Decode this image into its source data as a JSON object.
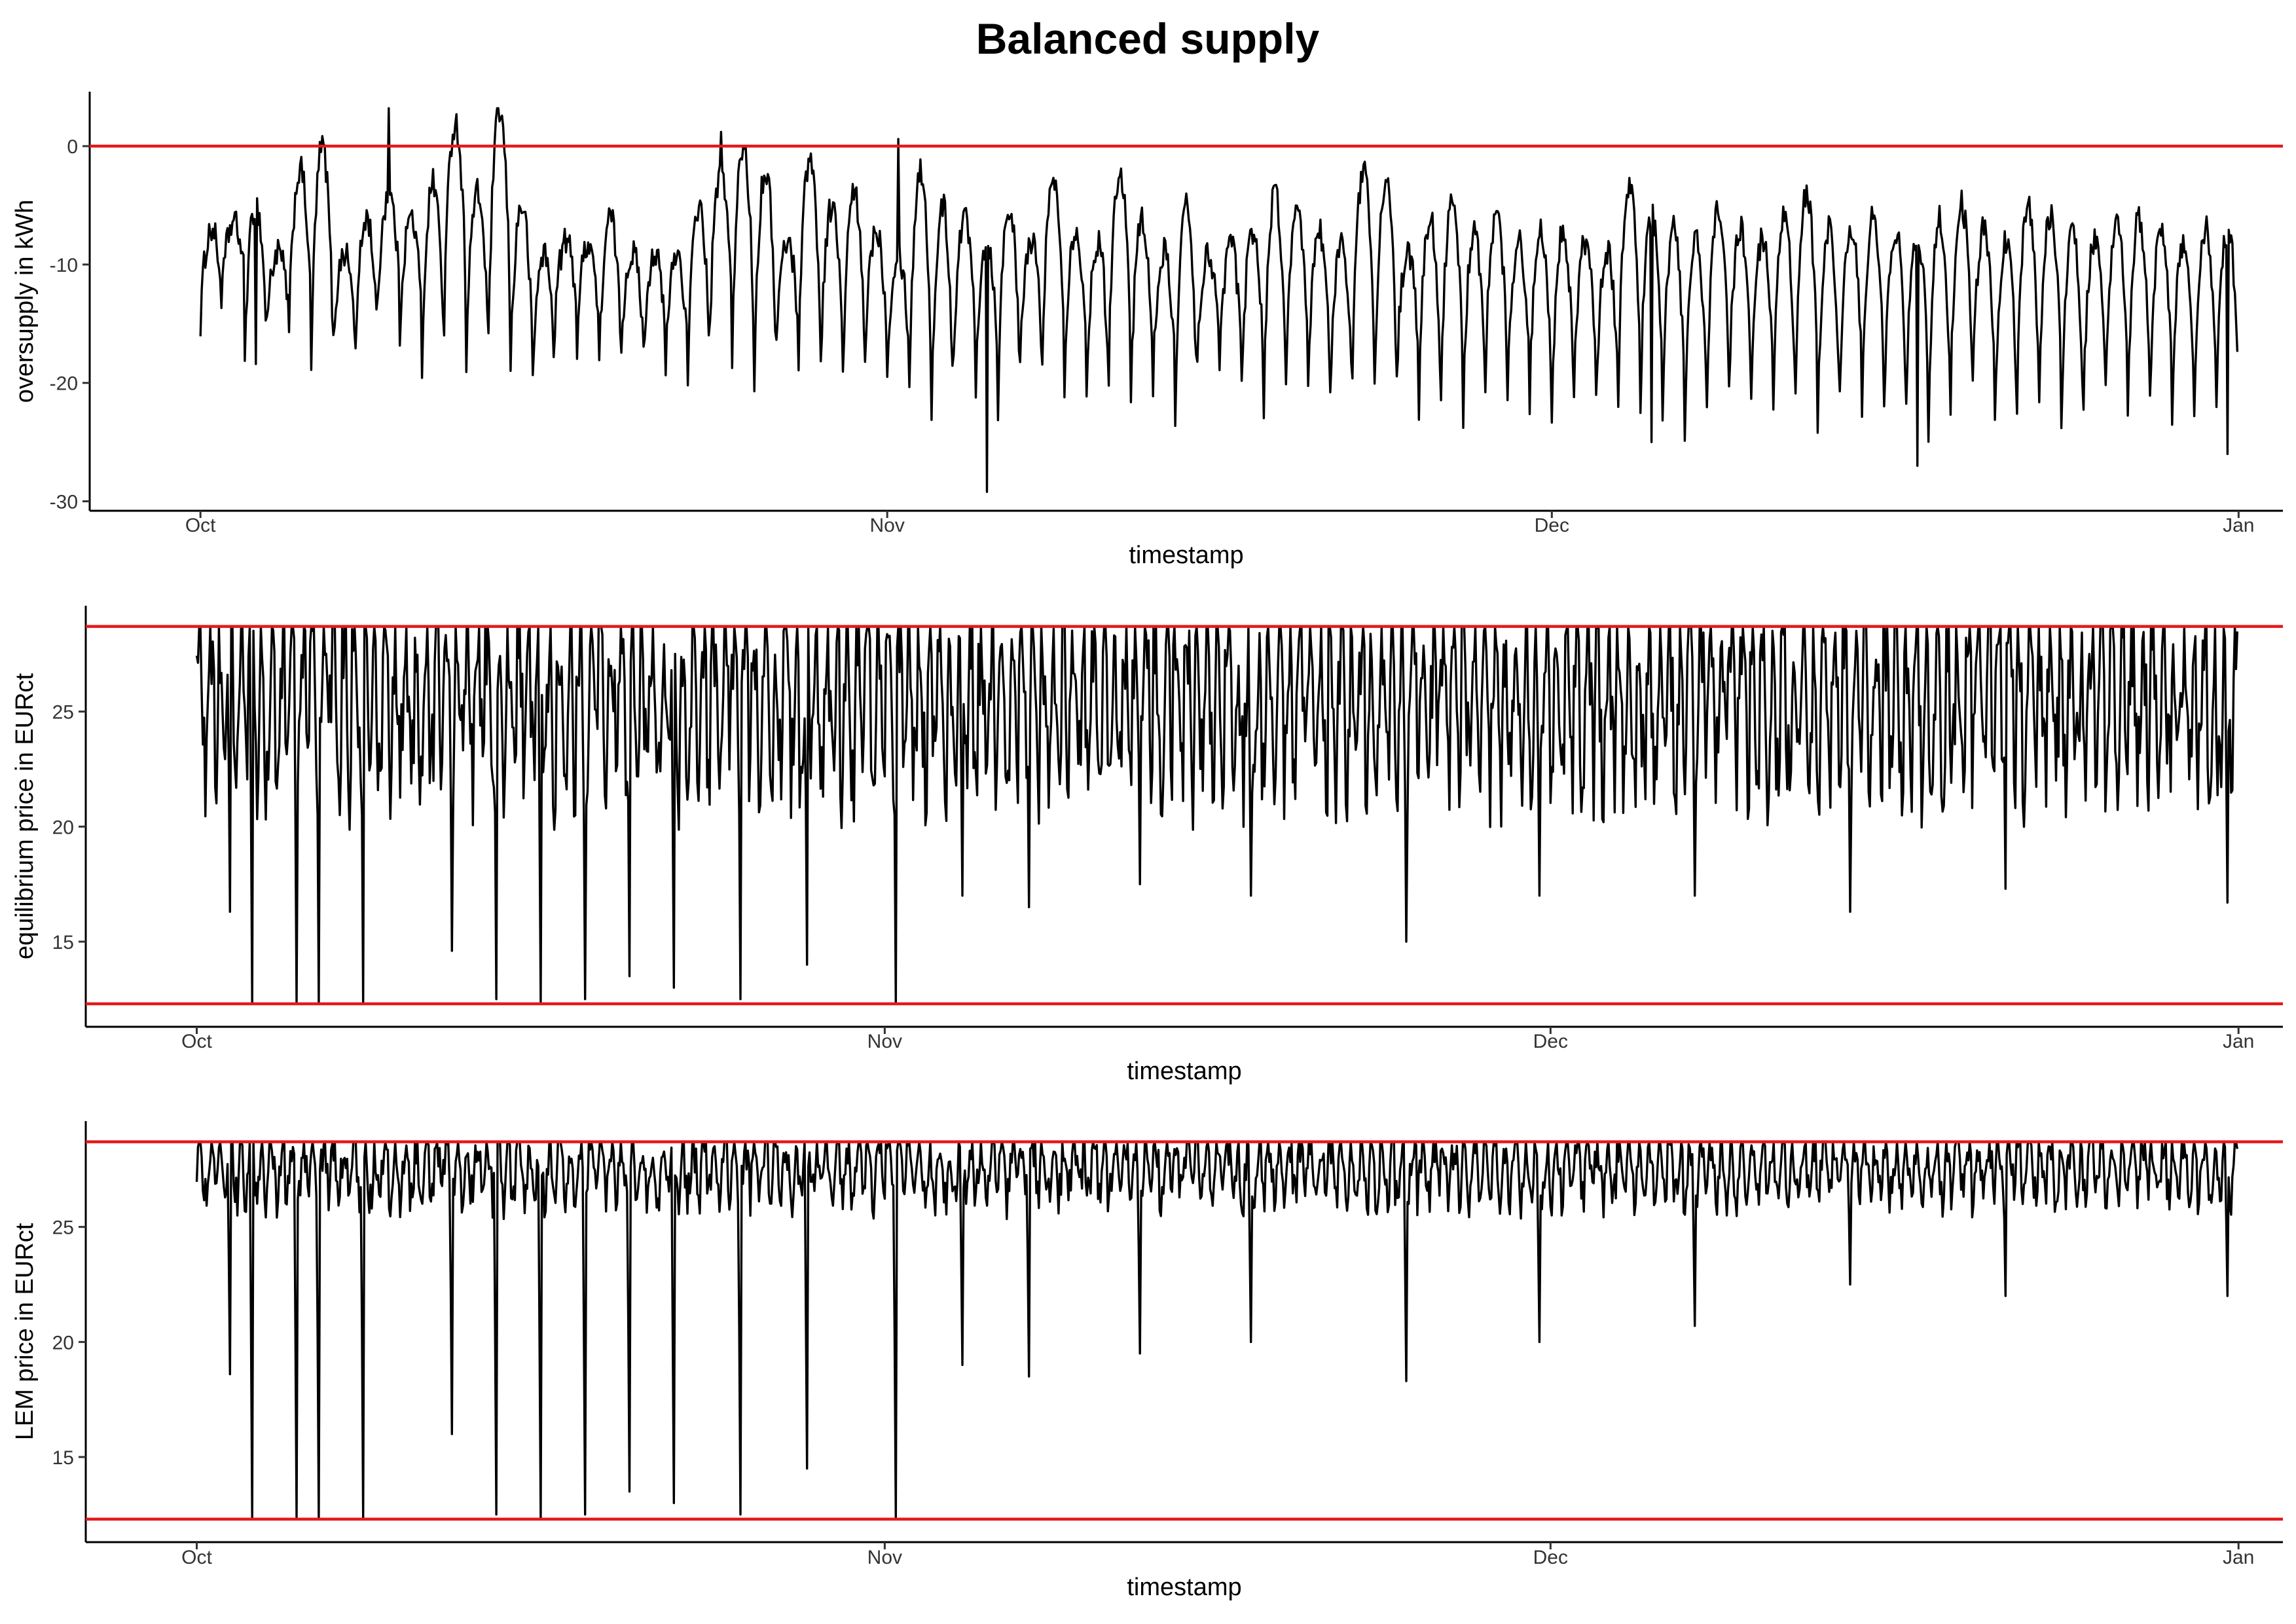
{
  "title": "Balanced supply",
  "colors": {
    "series": "#000000",
    "reference": "#e41a1c"
  },
  "chart_data": [
    {
      "type": "line",
      "xlabel": "timestamp",
      "ylabel": "oversupply in kWh",
      "x_tick_labels": [
        "Oct",
        "Nov",
        "Dec",
        "Jan"
      ],
      "y_tick_labels": [
        "0",
        "-10",
        "-20",
        "-30"
      ],
      "y_ticks": [
        0,
        -10,
        -20,
        -30
      ],
      "ylim": [
        -30.8,
        4.6
      ],
      "xlim": [
        "2023-09-26",
        "2024-01-03"
      ],
      "reference_lines": [
        0
      ],
      "grid": false,
      "series": [
        {
          "x_range": [
            "2023-10-01",
            "2023-12-31"
          ],
          "y_range": [
            -29.2,
            3.2
          ],
          "daily_peak": [
            -7,
            -6.5,
            -5,
            -9,
            -2,
            0,
            -9,
            -6,
            -4,
            -6,
            -3,
            2,
            -4,
            3,
            -5,
            -9,
            -8,
            -8,
            -6,
            -9,
            -9,
            -9,
            -5,
            -2,
            0,
            -2,
            -8,
            -1,
            -5,
            -4,
            -7,
            -9,
            -2,
            -5,
            -6,
            -8,
            -5,
            -8,
            -3,
            -7,
            -8,
            -2,
            -6,
            -9,
            -5,
            -9,
            -8,
            -7,
            -4,
            -6,
            -7,
            -8,
            -2,
            -3,
            -9,
            -6,
            -5,
            -7,
            -6,
            -8,
            -7,
            -7,
            -8,
            -9,
            -3,
            -6,
            -7,
            -8,
            -5,
            -7,
            -8,
            -6,
            -4,
            -7,
            -7,
            -6,
            -7,
            -8,
            -6,
            -5,
            -7,
            -8,
            -5,
            -6,
            -7,
            -8,
            -7,
            -6,
            -7,
            -8,
            -7,
            -7,
            -6,
            -8,
            -7,
            -7,
            -7,
            -6,
            -7,
            -8,
            -7,
            -7,
            -6,
            -7,
            -7,
            -7,
            -8,
            -7
          ],
          "daily_trough": [
            -15,
            -12,
            -18,
            -15,
            -16,
            -19,
            -17,
            -18,
            -14,
            -16,
            -19,
            -15,
            -18,
            -17,
            -19,
            -20,
            -15,
            -17,
            -19,
            -17,
            -18,
            -19,
            -20,
            -16,
            -19,
            -20,
            -17,
            -18,
            -19,
            -20,
            -18,
            -19,
            -21,
            -24,
            -18,
            -20,
            -22,
            -19,
            -18,
            -20,
            -21,
            -19,
            -22,
            -20,
            -24,
            -19,
            -20,
            -21,
            -22,
            -19,
            -21,
            -22,
            -20,
            -21,
            -20,
            -22,
            -21,
            -23,
            -20,
            -21,
            -22,
            -23,
            -21,
            -22,
            -21,
            -22,
            -23,
            -24,
            -22,
            -21,
            -22,
            -23,
            -22,
            -24,
            -21,
            -22,
            -23,
            -21,
            -24,
            -22,
            -21,
            -23,
            -22,
            -21,
            -24,
            -22,
            -21,
            -23,
            -22,
            -24,
            -22,
            -21,
            -23,
            -22,
            -21,
            -23,
            -22,
            -24,
            -21,
            -22,
            -23,
            -22,
            -21,
            -22,
            -23,
            -22,
            -24,
            -22
          ],
          "notable_values": [
            {
              "x": "2023-10-03",
              "y": -18.4
            },
            {
              "x": "2023-10-09",
              "y": 3.2
            },
            {
              "x": "2023-10-24",
              "y": 1.2
            },
            {
              "x": "2023-11-01",
              "y": 0.6
            },
            {
              "x": "2023-11-05",
              "y": -29.2
            },
            {
              "x": "2023-12-05",
              "y": -25.0
            },
            {
              "x": "2023-12-17",
              "y": -27.0
            },
            {
              "x": "2023-12-31",
              "y": -26.0
            }
          ]
        }
      ]
    },
    {
      "type": "line",
      "xlabel": "timestamp",
      "ylabel": "equilibrium price in EURct",
      "x_tick_labels": [
        "Oct",
        "Nov",
        "Dec",
        "Jan"
      ],
      "y_tick_labels": [
        "25",
        "20",
        "15"
      ],
      "y_ticks": [
        25,
        20,
        15
      ],
      "ylim": [
        11.3,
        29.6
      ],
      "xlim": [
        "2023-09-26",
        "2024-01-03"
      ],
      "reference_lines": [
        28.7,
        12.3
      ],
      "grid": false,
      "series": [
        {
          "x_range": [
            "2023-10-01",
            "2023-12-31"
          ],
          "y_range": [
            12.3,
            28.7
          ],
          "band": [
            21.5,
            28.7
          ],
          "deep_dips": [
            {
              "x": "2023-10-02",
              "y": 16.3
            },
            {
              "x": "2023-10-03",
              "y": 12.3
            },
            {
              "x": "2023-10-05",
              "y": 12.3
            },
            {
              "x": "2023-10-06",
              "y": 12.3
            },
            {
              "x": "2023-10-08",
              "y": 12.3
            },
            {
              "x": "2023-10-12",
              "y": 14.6
            },
            {
              "x": "2023-10-14",
              "y": 12.5
            },
            {
              "x": "2023-10-16",
              "y": 12.3
            },
            {
              "x": "2023-10-18",
              "y": 12.5
            },
            {
              "x": "2023-10-20",
              "y": 13.5
            },
            {
              "x": "2023-10-22",
              "y": 13.0
            },
            {
              "x": "2023-10-25",
              "y": 12.5
            },
            {
              "x": "2023-10-28",
              "y": 14.0
            },
            {
              "x": "2023-11-01",
              "y": 12.3
            },
            {
              "x": "2023-11-04",
              "y": 17.0
            },
            {
              "x": "2023-11-07",
              "y": 16.5
            },
            {
              "x": "2023-11-12",
              "y": 17.5
            },
            {
              "x": "2023-11-17",
              "y": 17.0
            },
            {
              "x": "2023-11-24",
              "y": 15.0
            },
            {
              "x": "2023-11-30",
              "y": 17.0
            },
            {
              "x": "2023-12-07",
              "y": 17.0
            },
            {
              "x": "2023-12-14",
              "y": 16.3
            },
            {
              "x": "2023-12-21",
              "y": 17.3
            },
            {
              "x": "2023-12-31",
              "y": 16.7
            }
          ]
        }
      ]
    },
    {
      "type": "line",
      "xlabel": "timestamp",
      "ylabel": "LEM price in EURct",
      "x_tick_labels": [
        "Oct",
        "Nov",
        "Dec",
        "Jan"
      ],
      "y_tick_labels": [
        "25",
        "20",
        "15"
      ],
      "y_ticks": [
        25,
        20,
        15
      ],
      "ylim": [
        11.3,
        29.6
      ],
      "xlim": [
        "2023-09-26",
        "2024-01-03"
      ],
      "reference_lines": [
        28.7,
        12.3
      ],
      "grid": false,
      "series": [
        {
          "x_range": [
            "2023-10-01",
            "2023-12-31"
          ],
          "y_range": [
            12.3,
            28.7
          ],
          "band": [
            26.0,
            28.7
          ],
          "deep_dips": [
            {
              "x": "2023-10-02",
              "y": 18.6
            },
            {
              "x": "2023-10-03",
              "y": 12.3
            },
            {
              "x": "2023-10-05",
              "y": 12.3
            },
            {
              "x": "2023-10-06",
              "y": 12.3
            },
            {
              "x": "2023-10-08",
              "y": 12.3
            },
            {
              "x": "2023-10-12",
              "y": 16.0
            },
            {
              "x": "2023-10-14",
              "y": 12.5
            },
            {
              "x": "2023-10-16",
              "y": 12.3
            },
            {
              "x": "2023-10-18",
              "y": 12.5
            },
            {
              "x": "2023-10-20",
              "y": 13.5
            },
            {
              "x": "2023-10-22",
              "y": 13.0
            },
            {
              "x": "2023-10-25",
              "y": 12.5
            },
            {
              "x": "2023-10-28",
              "y": 14.5
            },
            {
              "x": "2023-11-01",
              "y": 12.3
            },
            {
              "x": "2023-11-04",
              "y": 19.0
            },
            {
              "x": "2023-11-07",
              "y": 18.5
            },
            {
              "x": "2023-11-12",
              "y": 19.5
            },
            {
              "x": "2023-11-17",
              "y": 20.0
            },
            {
              "x": "2023-11-24",
              "y": 18.3
            },
            {
              "x": "2023-11-30",
              "y": 20.0
            },
            {
              "x": "2023-12-07",
              "y": 20.7
            },
            {
              "x": "2023-12-14",
              "y": 22.5
            },
            {
              "x": "2023-12-21",
              "y": 22.0
            },
            {
              "x": "2023-12-31",
              "y": 22.0
            }
          ]
        }
      ]
    }
  ]
}
